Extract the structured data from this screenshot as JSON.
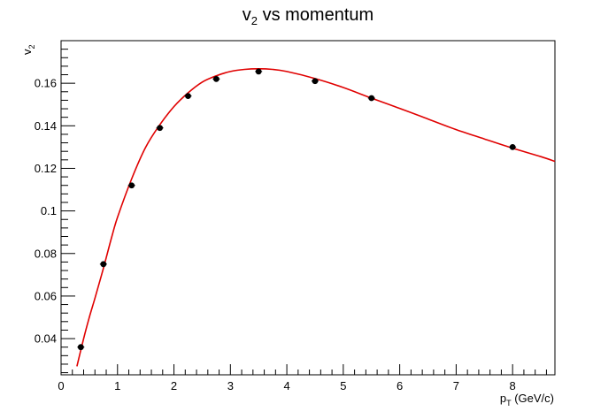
{
  "chart_data": {
    "type": "scatter",
    "title_main": "v",
    "title_sub": "2",
    "title_rest": " vs momentum",
    "xlabel_main": "p",
    "xlabel_sub": "T",
    "xlabel_rest": " (GeV/c)",
    "ylabel_main": "v",
    "ylabel_sub": "2",
    "xlim": [
      0,
      8.75
    ],
    "ylim": [
      0.023,
      0.18
    ],
    "x_ticks": [
      0,
      1,
      2,
      3,
      4,
      5,
      6,
      7,
      8
    ],
    "x_tick_labels": [
      "0",
      "1",
      "2",
      "3",
      "4",
      "5",
      "6",
      "7",
      "8"
    ],
    "y_ticks": [
      0.04,
      0.06,
      0.08,
      0.1,
      0.12,
      0.14,
      0.16
    ],
    "y_tick_labels": [
      "0.04",
      "0.06",
      "0.08",
      "0.1",
      "0.12",
      "0.14",
      "0.16"
    ],
    "grid": false,
    "legend": "none",
    "series": [
      {
        "kind": "points",
        "color": "#000000",
        "x": [
          0.35,
          0.75,
          1.25,
          1.75,
          2.25,
          2.75,
          3.5,
          4.5,
          5.5,
          8.0
        ],
        "y": [
          0.036,
          0.075,
          0.112,
          0.139,
          0.154,
          0.162,
          0.1655,
          0.161,
          0.153,
          0.13
        ]
      },
      {
        "kind": "fit-curve",
        "color": "#e00000",
        "x": [
          0.28,
          0.4,
          0.5,
          0.6,
          0.75,
          0.9,
          1.0,
          1.25,
          1.5,
          1.75,
          2.0,
          2.25,
          2.5,
          2.75,
          3.0,
          3.25,
          3.5,
          3.75,
          4.0,
          4.5,
          5.0,
          5.5,
          6.0,
          6.5,
          7.0,
          7.5,
          8.0,
          8.5,
          8.75
        ],
        "y": [
          0.027,
          0.04,
          0.05,
          0.059,
          0.073,
          0.088,
          0.097,
          0.115,
          0.13,
          0.1405,
          0.149,
          0.1555,
          0.1605,
          0.1635,
          0.1655,
          0.1665,
          0.1668,
          0.1665,
          0.1655,
          0.1622,
          0.158,
          0.153,
          0.1482,
          0.1432,
          0.1382,
          0.1338,
          0.1295,
          0.1255,
          0.1233
        ]
      }
    ]
  }
}
